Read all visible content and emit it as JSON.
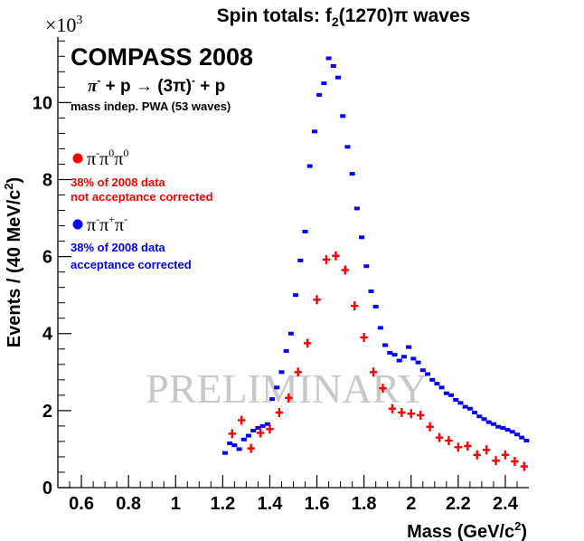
{
  "chart_data": {
    "type": "scatter",
    "title": {
      "prefix": "Spin totals:  f",
      "sub": "2",
      "suffix": "(1270)π  waves"
    },
    "xlabel": {
      "text": "Mass (GeV/c",
      "sup": "2",
      "close": ")"
    },
    "ylabel": {
      "text": "Events / (40 MeV/c",
      "sup": "2",
      "close": ")"
    },
    "y_multiplier": {
      "base": "×10",
      "exp": "3"
    },
    "xlim": [
      0.5,
      2.5
    ],
    "ylim": [
      0,
      11.7
    ],
    "x_ticks": [
      {
        "v": 0.6,
        "label": "0.6"
      },
      {
        "v": 0.8,
        "label": "0.8"
      },
      {
        "v": 1.0,
        "label": "1"
      },
      {
        "v": 1.2,
        "label": "1.2"
      },
      {
        "v": 1.4,
        "label": "1.4"
      },
      {
        "v": 1.6,
        "label": "1.6"
      },
      {
        "v": 1.8,
        "label": "1.8"
      },
      {
        "v": 2.0,
        "label": "2"
      },
      {
        "v": 2.2,
        "label": "2.2"
      },
      {
        "v": 2.4,
        "label": "2.4"
      }
    ],
    "y_ticks": [
      {
        "v": 0,
        "label": "0"
      },
      {
        "v": 2,
        "label": "2"
      },
      {
        "v": 4,
        "label": "4"
      },
      {
        "v": 6,
        "label": "6"
      },
      {
        "v": 8,
        "label": "8"
      },
      {
        "v": 10,
        "label": "10"
      }
    ],
    "grid": false,
    "annotations": {
      "experiment": "COMPASS 2008",
      "reaction": {
        "pi": "π",
        "pi_sup": "-",
        "mid": " + p → ",
        "state": "(3π)",
        "state_sup": "-",
        "end": " + p"
      },
      "method": "mass indep. PWA (53 waves)",
      "watermark": "PRELIMINARY"
    },
    "legend": {
      "placement": "top-left"
    },
    "series": [
      {
        "name": "π⁻π⁰π⁰",
        "legend_label": {
          "g1": "π",
          "s1": "-",
          "g2": "π",
          "s2": "0",
          "g3": "π",
          "s3": "0"
        },
        "note_line1": "38% of 2008 data",
        "note_line2": "not acceptance corrected",
        "color": "#ff0000",
        "bin_width": 0.04,
        "points": [
          [
            1.24,
            1.4
          ],
          [
            1.28,
            1.75
          ],
          [
            1.32,
            1.02
          ],
          [
            1.36,
            1.42
          ],
          [
            1.4,
            1.52
          ],
          [
            1.44,
            1.95
          ],
          [
            1.48,
            2.33
          ],
          [
            1.52,
            3.0
          ],
          [
            1.56,
            3.75
          ],
          [
            1.6,
            4.88
          ],
          [
            1.64,
            5.92
          ],
          [
            1.68,
            6.02
          ],
          [
            1.72,
            5.65
          ],
          [
            1.76,
            4.72
          ],
          [
            1.8,
            3.9
          ],
          [
            1.84,
            3.0
          ],
          [
            1.88,
            2.58
          ],
          [
            1.92,
            2.05
          ],
          [
            1.96,
            1.95
          ],
          [
            2.0,
            1.92
          ],
          [
            2.04,
            1.88
          ],
          [
            2.08,
            1.58
          ],
          [
            2.12,
            1.3
          ],
          [
            2.16,
            1.22
          ],
          [
            2.2,
            1.05
          ],
          [
            2.24,
            1.08
          ],
          [
            2.28,
            0.85
          ],
          [
            2.32,
            0.98
          ],
          [
            2.36,
            0.7
          ],
          [
            2.4,
            0.85
          ],
          [
            2.44,
            0.68
          ],
          [
            2.48,
            0.55
          ]
        ]
      },
      {
        "name": "π⁻π⁺π⁻",
        "legend_label": {
          "g1": "π",
          "s1": "-",
          "g2": "π",
          "s2": "+",
          "g3": "π",
          "s3": "-"
        },
        "note_line1": "38% of 2008 data",
        "note_line2": "acceptance corrected",
        "color": "#0000ff",
        "bin_width": 0.02,
        "points": [
          [
            1.21,
            0.9
          ],
          [
            1.23,
            1.15
          ],
          [
            1.25,
            1.1
          ],
          [
            1.27,
            1.0
          ],
          [
            1.29,
            1.25
          ],
          [
            1.31,
            1.35
          ],
          [
            1.33,
            1.48
          ],
          [
            1.35,
            1.55
          ],
          [
            1.37,
            1.6
          ],
          [
            1.39,
            1.65
          ],
          [
            1.41,
            2.3
          ],
          [
            1.43,
            2.6
          ],
          [
            1.45,
            3.0
          ],
          [
            1.47,
            3.55
          ],
          [
            1.49,
            4.0
          ],
          [
            1.51,
            5.0
          ],
          [
            1.53,
            5.9
          ],
          [
            1.55,
            6.65
          ],
          [
            1.57,
            8.35
          ],
          [
            1.59,
            9.25
          ],
          [
            1.61,
            10.2
          ],
          [
            1.63,
            10.5
          ],
          [
            1.65,
            11.15
          ],
          [
            1.67,
            10.95
          ],
          [
            1.69,
            10.65
          ],
          [
            1.71,
            9.65
          ],
          [
            1.73,
            8.85
          ],
          [
            1.75,
            8.15
          ],
          [
            1.77,
            7.25
          ],
          [
            1.79,
            6.5
          ],
          [
            1.81,
            5.75
          ],
          [
            1.83,
            5.1
          ],
          [
            1.85,
            4.7
          ],
          [
            1.87,
            4.15
          ],
          [
            1.89,
            3.7
          ],
          [
            1.91,
            3.5
          ],
          [
            1.93,
            3.45
          ],
          [
            1.95,
            3.3
          ],
          [
            1.97,
            3.4
          ],
          [
            1.99,
            3.65
          ],
          [
            2.01,
            3.35
          ],
          [
            2.03,
            3.25
          ],
          [
            2.05,
            3.05
          ],
          [
            2.07,
            2.95
          ],
          [
            2.09,
            2.8
          ],
          [
            2.11,
            2.7
          ],
          [
            2.13,
            2.6
          ],
          [
            2.15,
            2.45
          ],
          [
            2.17,
            2.4
          ],
          [
            2.19,
            2.28
          ],
          [
            2.21,
            2.2
          ],
          [
            2.23,
            2.1
          ],
          [
            2.25,
            2.05
          ],
          [
            2.27,
            1.95
          ],
          [
            2.29,
            1.85
          ],
          [
            2.31,
            1.78
          ],
          [
            2.33,
            1.7
          ],
          [
            2.35,
            1.65
          ],
          [
            2.37,
            1.58
          ],
          [
            2.39,
            1.55
          ],
          [
            2.41,
            1.5
          ],
          [
            2.43,
            1.45
          ],
          [
            2.45,
            1.38
          ],
          [
            2.47,
            1.3
          ],
          [
            2.49,
            1.22
          ]
        ]
      }
    ]
  }
}
